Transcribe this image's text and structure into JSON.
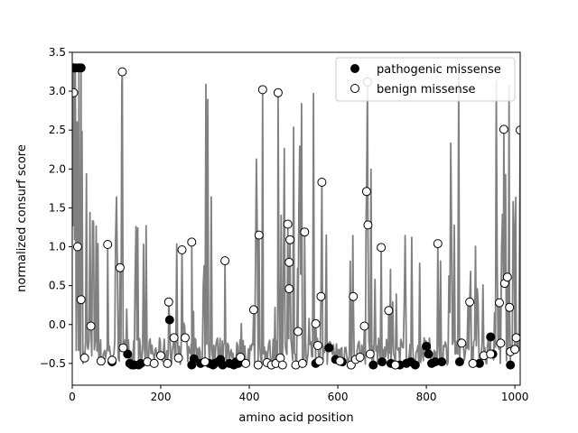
{
  "chart_data": {
    "type": "scatter",
    "title": "",
    "xlabel": "amino acid position",
    "ylabel": "normalized consurf score",
    "xlim": [
      0,
      1012
    ],
    "ylim": [
      -0.78,
      3.5
    ],
    "xticks": [
      0,
      200,
      400,
      600,
      800,
      1000
    ],
    "yticks": [
      -0.5,
      0.0,
      0.5,
      1.0,
      1.5,
      2.0,
      2.5,
      3.0,
      3.5
    ],
    "xtick_labels": [
      "0",
      "200",
      "400",
      "600",
      "800",
      "1000"
    ],
    "ytick_labels": [
      "−0.5",
      "0.0",
      "0.5",
      "1.0",
      "1.5",
      "2.0",
      "2.5",
      "3.0",
      "3.5"
    ],
    "grid": false,
    "legend_position": "upper right",
    "legend": [
      "pathogenic missense",
      "benign missense"
    ],
    "colors": {
      "line": "#808080",
      "pathogenic": "#000000",
      "benign_face": "#ffffff",
      "benign_edge": "#000000"
    },
    "series": [
      {
        "name": "pathogenic missense",
        "style": "filled-circle",
        "points": [
          [
            3,
            3.3
          ],
          [
            7,
            3.3
          ],
          [
            15,
            3.3
          ],
          [
            20,
            3.3
          ],
          [
            90,
            -0.48
          ],
          [
            125,
            -0.38
          ],
          [
            130,
            -0.5
          ],
          [
            135,
            -0.52
          ],
          [
            140,
            -0.52
          ],
          [
            150,
            -0.52
          ],
          [
            155,
            -0.5
          ],
          [
            220,
            0.06
          ],
          [
            270,
            -0.52
          ],
          [
            275,
            -0.44
          ],
          [
            290,
            -0.5
          ],
          [
            310,
            -0.5
          ],
          [
            318,
            -0.52
          ],
          [
            322,
            -0.5
          ],
          [
            330,
            -0.48
          ],
          [
            335,
            -0.45
          ],
          [
            340,
            -0.52
          ],
          [
            355,
            -0.5
          ],
          [
            365,
            -0.52
          ],
          [
            370,
            -0.48
          ],
          [
            375,
            -0.5
          ],
          [
            550,
            -0.5
          ],
          [
            580,
            -0.3
          ],
          [
            595,
            -0.45
          ],
          [
            610,
            -0.48
          ],
          [
            680,
            -0.52
          ],
          [
            700,
            -0.48
          ],
          [
            720,
            -0.5
          ],
          [
            740,
            -0.52
          ],
          [
            755,
            -0.5
          ],
          [
            765,
            -0.48
          ],
          [
            775,
            -0.52
          ],
          [
            800,
            -0.28
          ],
          [
            805,
            -0.38
          ],
          [
            812,
            -0.5
          ],
          [
            820,
            -0.48
          ],
          [
            835,
            -0.48
          ],
          [
            875,
            -0.48
          ],
          [
            920,
            -0.5
          ],
          [
            945,
            -0.16
          ],
          [
            950,
            -0.38
          ],
          [
            990,
            -0.52
          ]
        ]
      },
      {
        "name": "benign missense",
        "style": "open-circle",
        "points": [
          [
            3,
            2.98
          ],
          [
            12,
            1.0
          ],
          [
            20,
            0.32
          ],
          [
            28,
            -0.43
          ],
          [
            42,
            -0.02
          ],
          [
            65,
            -0.47
          ],
          [
            80,
            1.03
          ],
          [
            90,
            -0.46
          ],
          [
            108,
            0.73
          ],
          [
            115,
            -0.3
          ],
          [
            113,
            3.25
          ],
          [
            170,
            -0.48
          ],
          [
            185,
            -0.5
          ],
          [
            200,
            -0.4
          ],
          [
            215,
            -0.5
          ],
          [
            218,
            0.29
          ],
          [
            230,
            -0.17
          ],
          [
            240,
            -0.43
          ],
          [
            248,
            0.96
          ],
          [
            255,
            -0.17
          ],
          [
            270,
            1.06
          ],
          [
            300,
            -0.48
          ],
          [
            345,
            0.82
          ],
          [
            380,
            -0.42
          ],
          [
            392,
            -0.5
          ],
          [
            410,
            0.19
          ],
          [
            420,
            -0.52
          ],
          [
            422,
            1.15
          ],
          [
            430,
            3.02
          ],
          [
            440,
            -0.49
          ],
          [
            450,
            -0.52
          ],
          [
            460,
            -0.5
          ],
          [
            465,
            2.98
          ],
          [
            470,
            -0.43
          ],
          [
            475,
            -0.52
          ],
          [
            487,
            1.29
          ],
          [
            490,
            0.8
          ],
          [
            490,
            0.46
          ],
          [
            492,
            1.09
          ],
          [
            505,
            -0.52
          ],
          [
            510,
            -0.09
          ],
          [
            520,
            -0.5
          ],
          [
            525,
            1.19
          ],
          [
            550,
            0.01
          ],
          [
            555,
            -0.27
          ],
          [
            558,
            -0.47
          ],
          [
            562,
            0.36
          ],
          [
            564,
            1.83
          ],
          [
            605,
            -0.47
          ],
          [
            630,
            -0.52
          ],
          [
            635,
            0.36
          ],
          [
            640,
            -0.45
          ],
          [
            650,
            -0.42
          ],
          [
            660,
            -0.02
          ],
          [
            665,
            1.71
          ],
          [
            668,
            1.28
          ],
          [
            673,
            -0.38
          ],
          [
            698,
            0.99
          ],
          [
            715,
            0.18
          ],
          [
            730,
            -0.52
          ],
          [
            826,
            1.04
          ],
          [
            880,
            -0.24
          ],
          [
            898,
            0.29
          ],
          [
            905,
            -0.5
          ],
          [
            930,
            -0.4
          ],
          [
            945,
            -0.38
          ],
          [
            965,
            0.28
          ],
          [
            968,
            -0.24
          ],
          [
            975,
            2.51
          ],
          [
            977,
            0.53
          ],
          [
            983,
            0.61
          ],
          [
            988,
            0.22
          ],
          [
            990,
            -0.35
          ],
          [
            1000,
            -0.32
          ],
          [
            1003,
            -0.17
          ],
          [
            1012,
            2.5
          ],
          [
            667,
            3.12
          ]
        ]
      }
    ]
  }
}
